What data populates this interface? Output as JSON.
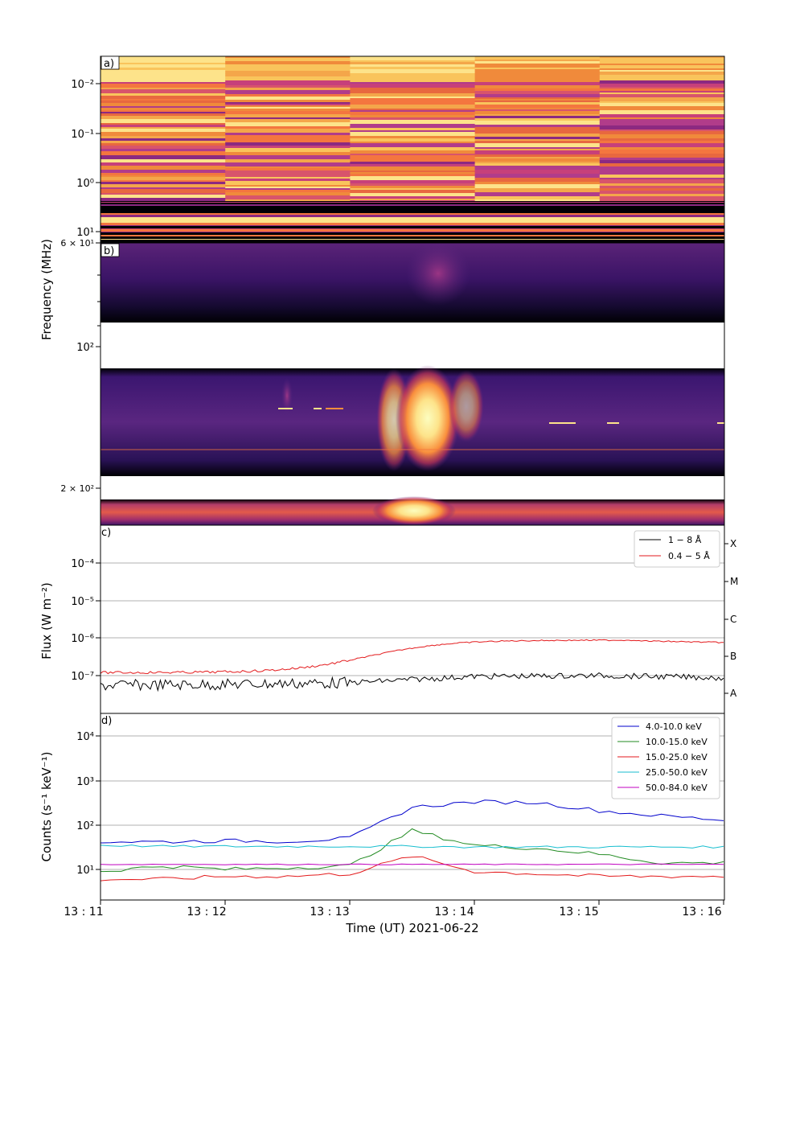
{
  "figure": {
    "ylabel_freq": "Frequency (MHz)",
    "ylabel_flux": "Flux (W m⁻²)",
    "ylabel_counts": "Counts (s⁻¹ keV⁻¹)",
    "xlabel": "Time (UT) 2021-06-22"
  },
  "panels": {
    "a": {
      "label": "a)",
      "yticks": [
        "10⁻²",
        "10⁻¹",
        "10⁰",
        "10¹"
      ]
    },
    "b": {
      "label": "b)",
      "yticks": [
        "6 × 10¹",
        "10²",
        "2 × 10²"
      ]
    },
    "c": {
      "label": "c)",
      "yticks": [
        "10⁻⁴",
        "10⁻⁵",
        "10⁻⁶",
        "10⁻⁷"
      ],
      "classes": [
        "X",
        "M",
        "C",
        "B",
        "A"
      ]
    },
    "d": {
      "label": "d)",
      "yticks": [
        "10⁴",
        "10³",
        "10²",
        "10¹"
      ]
    }
  },
  "xticks": [
    "13 : 11",
    "13 : 12",
    "13 : 13",
    "13 : 14",
    "13 : 15",
    "13 : 16"
  ],
  "colors": {
    "dark": "#000004",
    "purple": "#3b0f70",
    "magenta": "#8c2981",
    "orange": "#f4763f",
    "yellow": "#fcfdbf"
  },
  "chart_data": [
    {
      "type": "heatmap",
      "panel": "a",
      "description_ylabel": "Frequency (MHz)",
      "ylim_mhz": [
        30,
        0.004
      ],
      "yscale": "log",
      "segments_start_times": [
        "13:11",
        "13:12",
        "13:13",
        "13:14",
        "13:15"
      ]
    },
    {
      "type": "heatmap",
      "panel": "b",
      "ylim_mhz": [
        60,
        250
      ],
      "yscale": "log",
      "burst_time": "13:13:35"
    },
    {
      "type": "line",
      "panel": "c",
      "yscale": "log",
      "ylabel": "Flux (W m⁻²)",
      "ylim": [
        3e-08,
        0.001
      ],
      "x": [
        "13:11",
        "13:12",
        "13:13",
        "13:14",
        "13:15",
        "13:16"
      ],
      "series": [
        {
          "name": "1 − 8 Å",
          "color": "#000000",
          "values": [
            5.5e-08,
            5.8e-08,
            6.5e-08,
            9.5e-08,
            1e-07,
            8.8e-08
          ]
        },
        {
          "name": "0.4 − 5 Å",
          "color": "#e31a1c",
          "values": [
            1.2e-07,
            1.25e-07,
            2.2e-07,
            7.5e-07,
            8.8e-07,
            7.6e-07
          ]
        }
      ]
    },
    {
      "type": "line",
      "panel": "d",
      "yscale": "log",
      "ylabel": "Counts (s⁻¹ keV⁻¹)",
      "ylim": [
        2,
        30000
      ],
      "x_minutes": [
        0,
        0.5,
        1,
        1.5,
        2,
        2.5,
        3,
        3.5,
        4,
        4.5,
        5
      ],
      "series": [
        {
          "name": "4.0-10.0  keV",
          "color": "#0000cc",
          "values": [
            42,
            42,
            44,
            43,
            50,
            250,
            330,
            320,
            210,
            160,
            130
          ]
        },
        {
          "name": "10.0-15.0  keV",
          "color": "#228b22",
          "values": [
            9,
            12,
            10,
            11,
            12,
            75,
            35,
            30,
            22,
            14,
            14
          ]
        },
        {
          "name": "15.0-25.0  keV",
          "color": "#e31a1c",
          "values": [
            6,
            6,
            7,
            7,
            8,
            20,
            9,
            8,
            7,
            7,
            7
          ]
        },
        {
          "name": "25.0-50.0  keV",
          "color": "#17becf",
          "values": [
            35,
            33,
            33,
            33,
            33,
            33,
            32,
            32,
            32,
            32,
            32
          ]
        },
        {
          "name": "50.0-84.0  keV",
          "color": "#c000c0",
          "values": [
            13,
            13,
            13,
            13,
            13,
            13,
            13,
            13,
            13,
            13,
            13
          ]
        }
      ]
    }
  ]
}
